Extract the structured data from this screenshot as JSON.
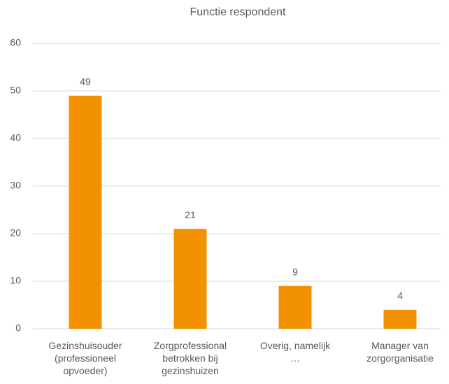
{
  "chart_data": {
    "type": "bar",
    "title": "Functie respondent",
    "categories": [
      "Gezinshuisouder (professioneel opvoeder)",
      "Zorgprofessional betrokken bij gezinshuizen",
      "Overig, namelijk …",
      "Manager van zorgorganisatie"
    ],
    "values": [
      49,
      21,
      9,
      4
    ],
    "color": "#f39200",
    "ylim": [
      0,
      60
    ],
    "yticks": [
      0,
      10,
      20,
      30,
      40,
      50,
      60
    ],
    "grid": true
  }
}
